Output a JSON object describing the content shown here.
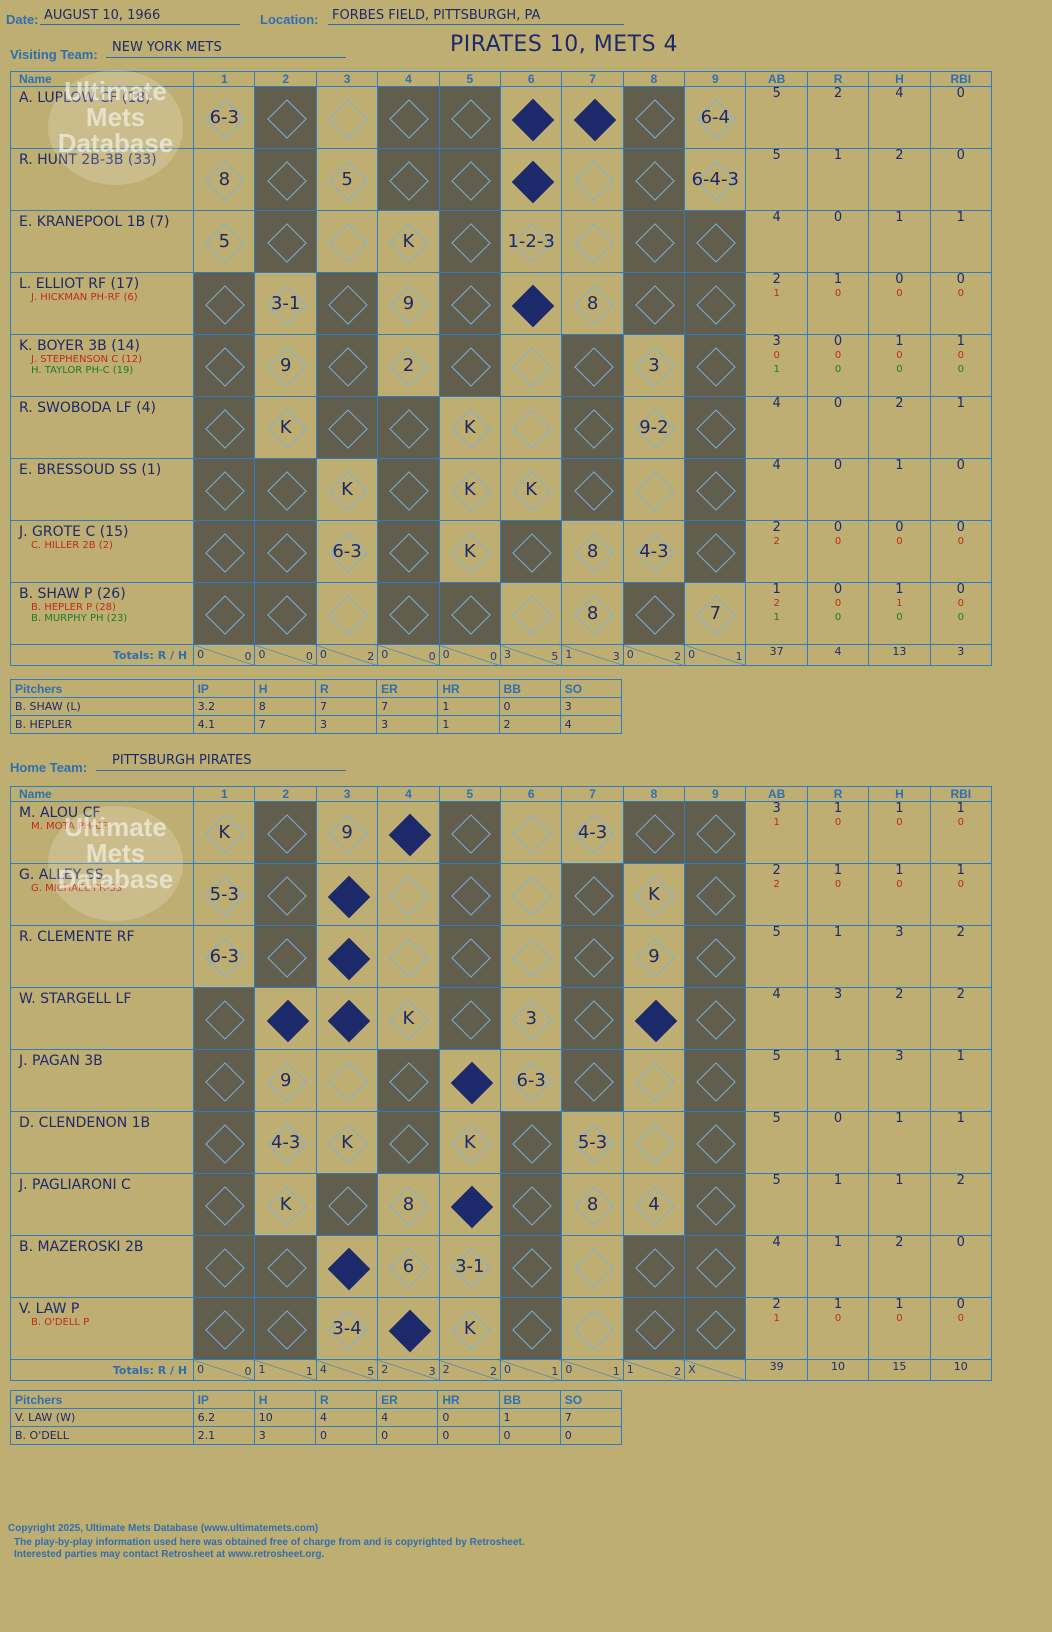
{
  "header": {
    "date_label": "Date:",
    "date": "AUGUST 10, 1966",
    "location_label": "Location:",
    "location": "FORBES FIELD, PITTSBURGH, PA",
    "visiting_label": "Visiting Team:",
    "visiting_team": "NEW YORK METS",
    "home_label": "Home Team:",
    "home_team": "PITTSBURGH PIRATES",
    "result": "PIRATES 10, METS 4"
  },
  "columns": {
    "name": "Name",
    "innings": [
      "1",
      "2",
      "3",
      "4",
      "5",
      "6",
      "7",
      "8",
      "9"
    ],
    "stats": [
      "AB",
      "R",
      "H",
      "RBI"
    ]
  },
  "visiting": {
    "players": [
      {
        "name": "A. LUPLOW CF (18)",
        "subs": [],
        "ab": [
          "5"
        ],
        "r": [
          "2"
        ],
        "h": [
          "4"
        ],
        "rbi": [
          "0"
        ]
      },
      {
        "name": "R. HUNT 2B-3B (33)",
        "subs": [],
        "ab": [
          "5"
        ],
        "r": [
          "1"
        ],
        "h": [
          "2"
        ],
        "rbi": [
          "0"
        ]
      },
      {
        "name": "E. KRANEPOOL 1B (7)",
        "subs": [],
        "ab": [
          "4"
        ],
        "r": [
          "0"
        ],
        "h": [
          "1"
        ],
        "rbi": [
          "1"
        ]
      },
      {
        "name": "L. ELLIOT RF (17)",
        "subs": [
          {
            "n": "J. HICKMAN PH-RF (6)",
            "c": "r"
          }
        ],
        "ab": [
          "2",
          "1"
        ],
        "r": [
          "1",
          "0"
        ],
        "h": [
          "0",
          "0"
        ],
        "rbi": [
          "0",
          "0"
        ]
      },
      {
        "name": "K. BOYER 3B (14)",
        "subs": [
          {
            "n": "J. STEPHENSON C (12)",
            "c": "r"
          },
          {
            "n": "H. TAYLOR PH-C (19)",
            "c": "g"
          }
        ],
        "ab": [
          "3",
          "0",
          "1"
        ],
        "r": [
          "0",
          "0",
          "0"
        ],
        "h": [
          "1",
          "0",
          "0"
        ],
        "rbi": [
          "1",
          "0",
          "0"
        ]
      },
      {
        "name": "R. SWOBODA LF (4)",
        "subs": [],
        "ab": [
          "4"
        ],
        "r": [
          "0"
        ],
        "h": [
          "2"
        ],
        "rbi": [
          "1"
        ]
      },
      {
        "name": "E. BRESSOUD SS (1)",
        "subs": [],
        "ab": [
          "4"
        ],
        "r": [
          "0"
        ],
        "h": [
          "1"
        ],
        "rbi": [
          "0"
        ]
      },
      {
        "name": "J. GROTE C (15)",
        "subs": [
          {
            "n": "C. HILLER 2B (2)",
            "c": "r"
          }
        ],
        "ab": [
          "2",
          "2"
        ],
        "r": [
          "0",
          "0"
        ],
        "h": [
          "0",
          "0"
        ],
        "rbi": [
          "0",
          "0"
        ]
      },
      {
        "name": "B. SHAW P (26)",
        "subs": [
          {
            "n": "B. HEPLER P (28)",
            "c": "r"
          },
          {
            "n": "B. MURPHY PH (23)",
            "c": "g"
          }
        ],
        "ab": [
          "1",
          "2",
          "1"
        ],
        "r": [
          "0",
          "0",
          "0"
        ],
        "h": [
          "1",
          "1",
          "0"
        ],
        "rbi": [
          "0",
          "0",
          "0"
        ]
      }
    ],
    "grid": [
      [
        "6-3",
        "D",
        "d",
        "D",
        "D",
        "F",
        "F",
        "D",
        "6-4"
      ],
      [
        "8",
        "D",
        "5",
        "D",
        "D",
        "F",
        "d",
        "D",
        "6-4-3"
      ],
      [
        "5",
        "D",
        "d",
        "K",
        "D",
        "1-2-3",
        "d",
        "D",
        "D"
      ],
      [
        "D",
        "3-1",
        "D",
        "9",
        "D",
        "F",
        "8",
        "D",
        "D"
      ],
      [
        "D",
        "9",
        "D",
        "2",
        "D",
        "d",
        "D",
        "3",
        "D"
      ],
      [
        "D",
        "K",
        "D",
        "D",
        "K",
        "d",
        "D",
        "9-2",
        "D"
      ],
      [
        "D",
        "D",
        "K",
        "D",
        "K",
        "K",
        "D",
        "d",
        "D"
      ],
      [
        "D",
        "D",
        "6-3",
        "D",
        "K",
        "D",
        "8",
        "4-3",
        "D"
      ],
      [
        "D",
        "D",
        "d",
        "D",
        "D",
        "d",
        "8",
        "D",
        "7"
      ]
    ],
    "totals_label": "Totals:",
    "totals_rh": {
      "r": "R",
      "h": "H"
    },
    "totals": [
      [
        "0",
        "0"
      ],
      [
        "0",
        "0"
      ],
      [
        "0",
        "2"
      ],
      [
        "0",
        "0"
      ],
      [
        "0",
        "0"
      ],
      [
        "3",
        "5"
      ],
      [
        "1",
        "3"
      ],
      [
        "0",
        "2"
      ],
      [
        "0",
        "1"
      ]
    ],
    "totals_stats": [
      "37",
      "4",
      "13",
      "3"
    ],
    "pitchers_header": [
      "Pitchers",
      "IP",
      "H",
      "R",
      "ER",
      "HR",
      "BB",
      "SO"
    ],
    "pitchers": [
      [
        "B. SHAW (L)",
        "3.2",
        "8",
        "7",
        "7",
        "1",
        "0",
        "3"
      ],
      [
        "B. HEPLER",
        "4.1",
        "7",
        "3",
        "3",
        "1",
        "2",
        "4"
      ]
    ]
  },
  "home": {
    "players": [
      {
        "name": "M. ALOU CF",
        "subs": [
          {
            "n": "M. MOTA PH-CF",
            "c": "r"
          }
        ],
        "ab": [
          "3",
          "1"
        ],
        "r": [
          "1",
          "0"
        ],
        "h": [
          "1",
          "0"
        ],
        "rbi": [
          "1",
          "0"
        ]
      },
      {
        "name": "G. ALLEY SS",
        "subs": [
          {
            "n": "G. MICHAEL PR-SS",
            "c": "r"
          }
        ],
        "ab": [
          "2",
          "2"
        ],
        "r": [
          "1",
          "0"
        ],
        "h": [
          "1",
          "0"
        ],
        "rbi": [
          "1",
          "0"
        ]
      },
      {
        "name": "R. CLEMENTE RF",
        "subs": [],
        "ab": [
          "5"
        ],
        "r": [
          "1"
        ],
        "h": [
          "3"
        ],
        "rbi": [
          "2"
        ]
      },
      {
        "name": "W. STARGELL LF",
        "subs": [],
        "ab": [
          "4"
        ],
        "r": [
          "3"
        ],
        "h": [
          "2"
        ],
        "rbi": [
          "2"
        ]
      },
      {
        "name": "J. PAGAN 3B",
        "subs": [],
        "ab": [
          "5"
        ],
        "r": [
          "1"
        ],
        "h": [
          "3"
        ],
        "rbi": [
          "1"
        ]
      },
      {
        "name": "D. CLENDENON 1B",
        "subs": [],
        "ab": [
          "5"
        ],
        "r": [
          "0"
        ],
        "h": [
          "1"
        ],
        "rbi": [
          "1"
        ]
      },
      {
        "name": "J. PAGLIARONI C",
        "subs": [],
        "ab": [
          "5"
        ],
        "r": [
          "1"
        ],
        "h": [
          "1"
        ],
        "rbi": [
          "2"
        ]
      },
      {
        "name": "B. MAZEROSKI 2B",
        "subs": [],
        "ab": [
          "4"
        ],
        "r": [
          "1"
        ],
        "h": [
          "2"
        ],
        "rbi": [
          "0"
        ]
      },
      {
        "name": "V. LAW P",
        "subs": [
          {
            "n": "B. O'DELL P",
            "c": "r"
          }
        ],
        "ab": [
          "2",
          "1"
        ],
        "r": [
          "1",
          "0"
        ],
        "h": [
          "1",
          "0"
        ],
        "rbi": [
          "0",
          "0"
        ]
      }
    ],
    "grid": [
      [
        "K",
        "D",
        "9",
        "F",
        "D",
        "d",
        "4-3",
        "D",
        "D"
      ],
      [
        "5-3",
        "D",
        "F",
        "d",
        "D",
        "d",
        "D",
        "K",
        "D"
      ],
      [
        "6-3",
        "D",
        "F",
        "d",
        "D",
        "d",
        "D",
        "9",
        "D"
      ],
      [
        "D",
        "F",
        "F",
        "K",
        "D",
        "3",
        "D",
        "F",
        "D"
      ],
      [
        "D",
        "9",
        "d",
        "D",
        "F",
        "6-3",
        "D",
        "d",
        "D"
      ],
      [
        "D",
        "4-3",
        "K",
        "D",
        "K",
        "D",
        "5-3",
        "d",
        "D"
      ],
      [
        "D",
        "K",
        "D",
        "8",
        "F",
        "D",
        "8",
        "4",
        "D"
      ],
      [
        "D",
        "D",
        "F",
        "6",
        "3-1",
        "D",
        "d",
        "D",
        "D"
      ],
      [
        "D",
        "D",
        "3-4",
        "F",
        "K",
        "D",
        "d",
        "D",
        "D"
      ]
    ],
    "totals_label": "Totals:",
    "totals_rh": {
      "r": "R",
      "h": "H"
    },
    "totals": [
      [
        "0",
        "0"
      ],
      [
        "1",
        "1"
      ],
      [
        "4",
        "5"
      ],
      [
        "2",
        "3"
      ],
      [
        "2",
        "2"
      ],
      [
        "0",
        "1"
      ],
      [
        "0",
        "1"
      ],
      [
        "1",
        "2"
      ],
      [
        "X",
        ""
      ]
    ],
    "totals_stats": [
      "39",
      "10",
      "15",
      "10"
    ],
    "pitchers_header": [
      "Pitchers",
      "IP",
      "H",
      "R",
      "ER",
      "HR",
      "BB",
      "SO"
    ],
    "pitchers": [
      [
        "V. LAW (W)",
        "6.2",
        "10",
        "4",
        "4",
        "0",
        "1",
        "7"
      ],
      [
        "B. O'DELL",
        "2.1",
        "3",
        "0",
        "0",
        "0",
        "0",
        "0"
      ]
    ]
  },
  "watermark": "Ultimate Mets Database",
  "footer": {
    "line1": "Copyright 2025, Ultimate Mets Database (www.ultimatemets.com)",
    "line2": "The play-by-play information used here was obtained free of charge from and is copyrighted by Retrosheet.",
    "line3": "Interested parties may contact Retrosheet at www.retrosheet.org."
  },
  "colors": {
    "background": "#bfae72",
    "grid_line": "#2f7cc0",
    "dark_cell": "#625e4d",
    "ink": "#1c2a6b",
    "sub_red": "#c02a1a",
    "sub_green": "#1f7a2a"
  }
}
